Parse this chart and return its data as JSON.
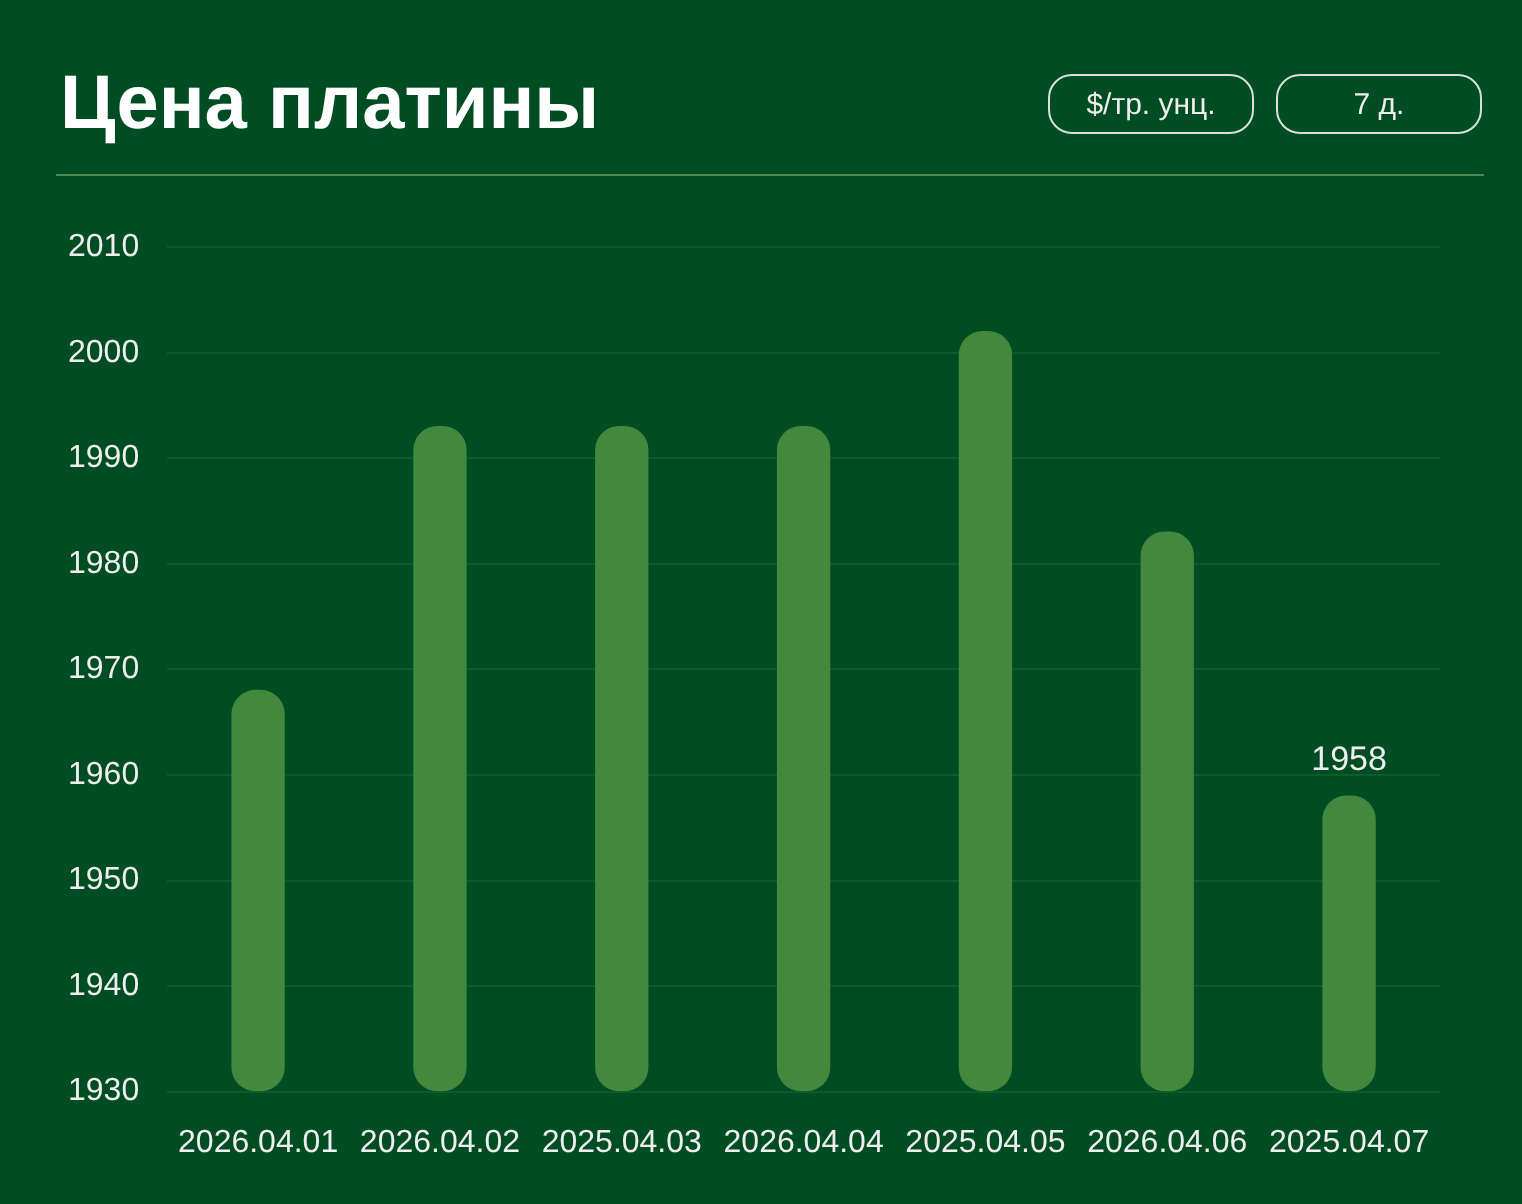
{
  "chart_data": {
    "type": "bar",
    "title": "Цена платины",
    "annotations": [
      "$/тр. унц.",
      "7 д."
    ],
    "categories": [
      "2026.04.01",
      "2026.04.02",
      "2025.04.03",
      "2026.04.04",
      "2025.04.05",
      "2026.04.06",
      "2025.04.07"
    ],
    "values": [
      1968,
      1993,
      1993,
      1993,
      2002,
      1983,
      1958
    ],
    "color": "#44883e",
    "value_labels": [
      null,
      null,
      null,
      null,
      null,
      null,
      "1958"
    ],
    "ylim": [
      1930,
      2010
    ],
    "yticks": [
      1930,
      1940,
      1950,
      1960,
      1970,
      1980,
      1990,
      2000,
      2010
    ],
    "grid": "y",
    "legend": false
  }
}
